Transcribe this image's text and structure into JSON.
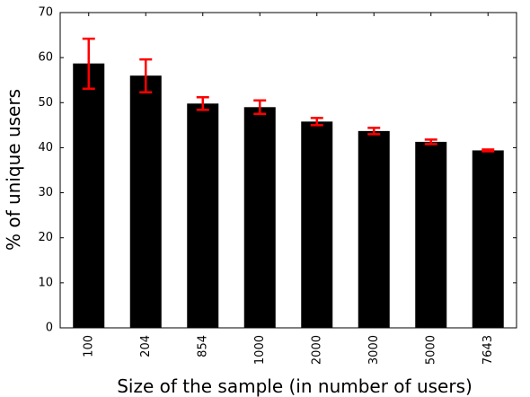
{
  "chart_data": {
    "type": "bar",
    "title": "",
    "xlabel": "Size of the sample (in number of users)",
    "ylabel": "% of unique users",
    "ylim": [
      0,
      70
    ],
    "yticks": [
      0,
      10,
      20,
      30,
      40,
      50,
      60,
      70
    ],
    "categories": [
      "100",
      "204",
      "854",
      "1000",
      "2000",
      "3000",
      "5000",
      "7643"
    ],
    "values": [
      58.7,
      56.0,
      49.8,
      49.0,
      45.8,
      43.7,
      41.3,
      39.4
    ],
    "error_low": [
      53.1,
      52.3,
      48.4,
      47.5,
      45.0,
      43.0,
      40.8,
      39.2
    ],
    "error_high": [
      64.2,
      59.6,
      51.2,
      50.5,
      46.6,
      44.4,
      41.8,
      39.6
    ],
    "bar_color": "#000000",
    "error_color": "#ff0000",
    "grid": false,
    "xtick_rotation": "vertical"
  }
}
